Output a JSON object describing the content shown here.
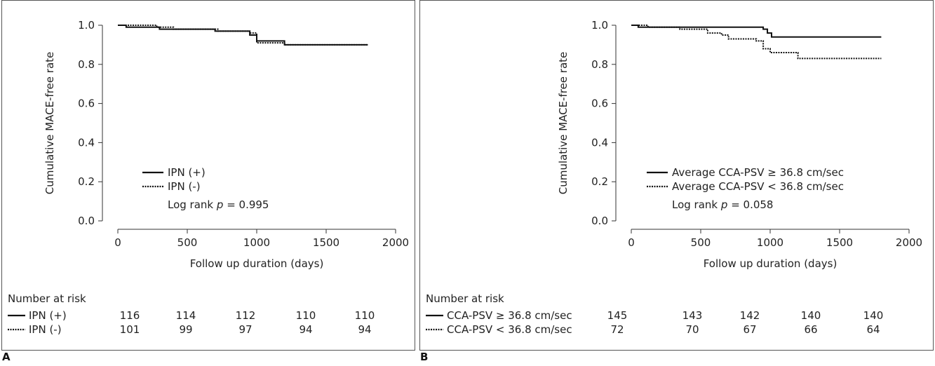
{
  "chart_data": [
    {
      "type": "line",
      "panel_label": "A",
      "xlabel": "Follow up duration (days)",
      "ylabel": "Cumulative MACE-free rate",
      "xlim": [
        0,
        2000
      ],
      "ylim": [
        0.0,
        1.0
      ],
      "xticks": [
        "0",
        "500",
        "1000",
        "1500",
        "2000"
      ],
      "yticks": [
        "0.0",
        "0.2",
        "0.4",
        "0.6",
        "0.8",
        "1.0"
      ],
      "grid": false,
      "legend_position": "bottom-left",
      "series": [
        {
          "name": "IPN (+)",
          "style": "solid",
          "x": [
            0,
            60,
            120,
            300,
            700,
            950,
            1000,
            1200,
            1800
          ],
          "y": [
            1.0,
            0.99,
            0.99,
            0.98,
            0.97,
            0.95,
            0.92,
            0.9,
            0.9
          ]
        },
        {
          "name": "IPN (-)",
          "style": "dotted",
          "x": [
            0,
            150,
            280,
            400,
            720,
            950,
            1000,
            1200,
            1800
          ],
          "y": [
            1.0,
            1.0,
            0.99,
            0.98,
            0.97,
            0.96,
            0.91,
            0.9,
            0.9
          ]
        }
      ],
      "annotation": {
        "prefix": "Log rank ",
        "italic": "p",
        "suffix": " = 0.995"
      },
      "risk_table": {
        "title": "Number at risk",
        "rows": [
          {
            "label": "IPN (+)",
            "style": "solid",
            "values": [
              "116",
              "114",
              "112",
              "110",
              "110"
            ]
          },
          {
            "label": "IPN (-)",
            "style": "dotted",
            "values": [
              "101",
              "99",
              "97",
              "94",
              "94"
            ]
          }
        ]
      }
    },
    {
      "type": "line",
      "panel_label": "B",
      "xlabel": "Follow up duration (days)",
      "ylabel": "Cumulative MACE-free rate",
      "xlim": [
        0,
        2000
      ],
      "ylim": [
        0.0,
        1.0
      ],
      "xticks": [
        "0",
        "500",
        "1000",
        "1500",
        "2000"
      ],
      "yticks": [
        "0.0",
        "0.2",
        "0.4",
        "0.6",
        "0.8",
        "1.0"
      ],
      "grid": false,
      "legend_position": "bottom-right",
      "series": [
        {
          "name": "Average CCA-PSV ≥ 36.8 cm/sec",
          "style": "solid",
          "x": [
            0,
            50,
            950,
            980,
            1010,
            1800
          ],
          "y": [
            1.0,
            0.99,
            0.98,
            0.96,
            0.94,
            0.94
          ]
        },
        {
          "name": "Average CCA-PSV < 36.8 cm/sec",
          "style": "dotted",
          "x": [
            0,
            120,
            250,
            350,
            550,
            650,
            700,
            900,
            950,
            1000,
            1200,
            1800
          ],
          "y": [
            1.0,
            0.99,
            0.99,
            0.98,
            0.96,
            0.95,
            0.93,
            0.92,
            0.88,
            0.86,
            0.83,
            0.83
          ]
        }
      ],
      "annotation": {
        "prefix": "Log rank ",
        "italic": "p",
        "suffix": " = 0.058"
      },
      "risk_table": {
        "title": "Number at risk",
        "rows": [
          {
            "label": "CCA-PSV ≥ 36.8 cm/sec",
            "style": "solid",
            "values": [
              "145",
              "143",
              "142",
              "140",
              "140"
            ]
          },
          {
            "label": "CCA-PSV < 36.8 cm/sec",
            "style": "dotted",
            "values": [
              "72",
              "70",
              "67",
              "66",
              "64"
            ]
          }
        ]
      }
    }
  ]
}
